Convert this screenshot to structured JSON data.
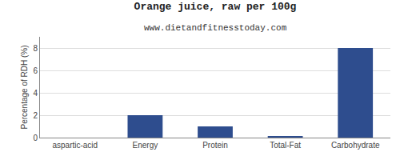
{
  "chart_data": {
    "type": "bar",
    "title": "Orange juice, raw per 100g",
    "subtitle": "www.dietandfitnesstoday.com",
    "ylabel": "Percentage of RDH (%)",
    "categories": [
      "aspartic-acid",
      "Energy",
      "Protein",
      "Total-Fat",
      "Carbohydrate"
    ],
    "values": [
      0.0,
      2.0,
      1.0,
      0.1,
      8.0
    ],
    "color": "#2e4d8e",
    "ylim": [
      0,
      9
    ],
    "yticks": [
      0,
      2,
      4,
      6,
      8
    ],
    "grid": true
  }
}
